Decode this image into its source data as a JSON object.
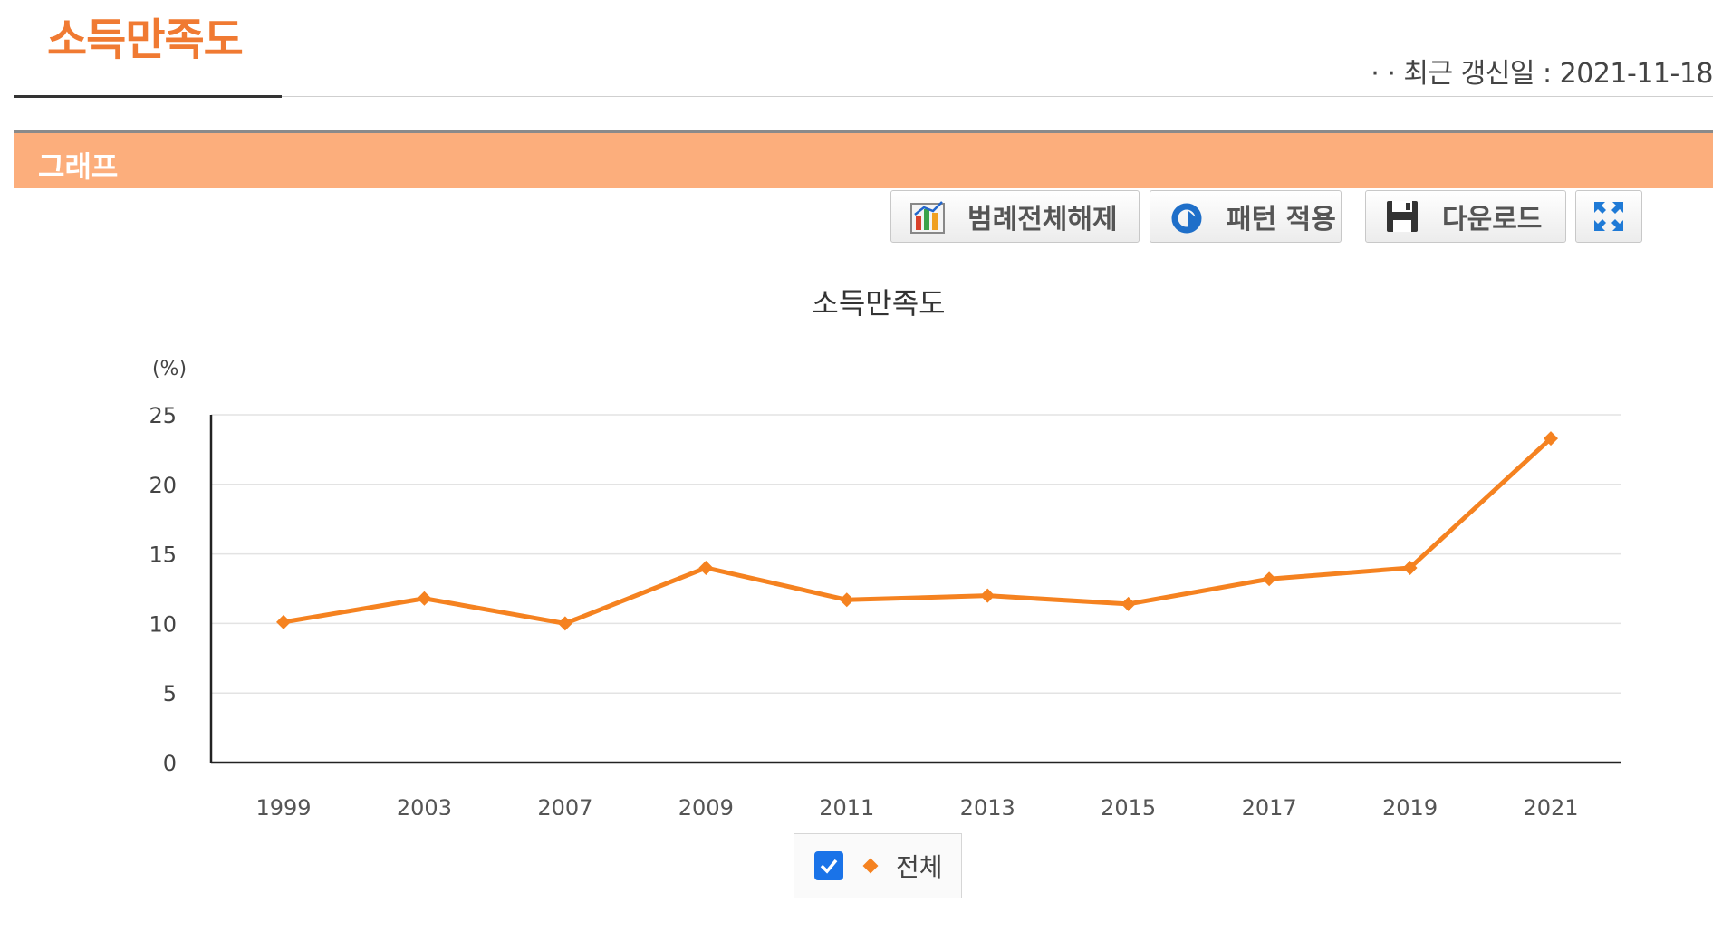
{
  "header": {
    "title": "소득만족도",
    "updated": "· · 최근 갱신일 : 2021-11-18"
  },
  "section": {
    "label": "그래프"
  },
  "toolbar": {
    "legend_off_label": "범례전체해제",
    "pattern_label": "패턴 적용",
    "download_label": "다운로드"
  },
  "colors": {
    "accent": "#f07a32",
    "series": "#f58220",
    "section_bar": "#fcae7c"
  },
  "chart_data": {
    "type": "line",
    "title": "소득만족도",
    "yunit": "(%)",
    "categories": [
      "1999",
      "2003",
      "2007",
      "2009",
      "2011",
      "2013",
      "2015",
      "2017",
      "2019",
      "2021"
    ],
    "series": [
      {
        "name": "전체",
        "values": [
          10.1,
          11.8,
          10.0,
          14.0,
          11.7,
          12.0,
          11.4,
          13.2,
          14.0,
          23.3
        ]
      }
    ],
    "ylim": [
      0,
      25
    ],
    "yticks": [
      0,
      5,
      10,
      15,
      20,
      25
    ],
    "grid": true,
    "legend": "bottom"
  }
}
